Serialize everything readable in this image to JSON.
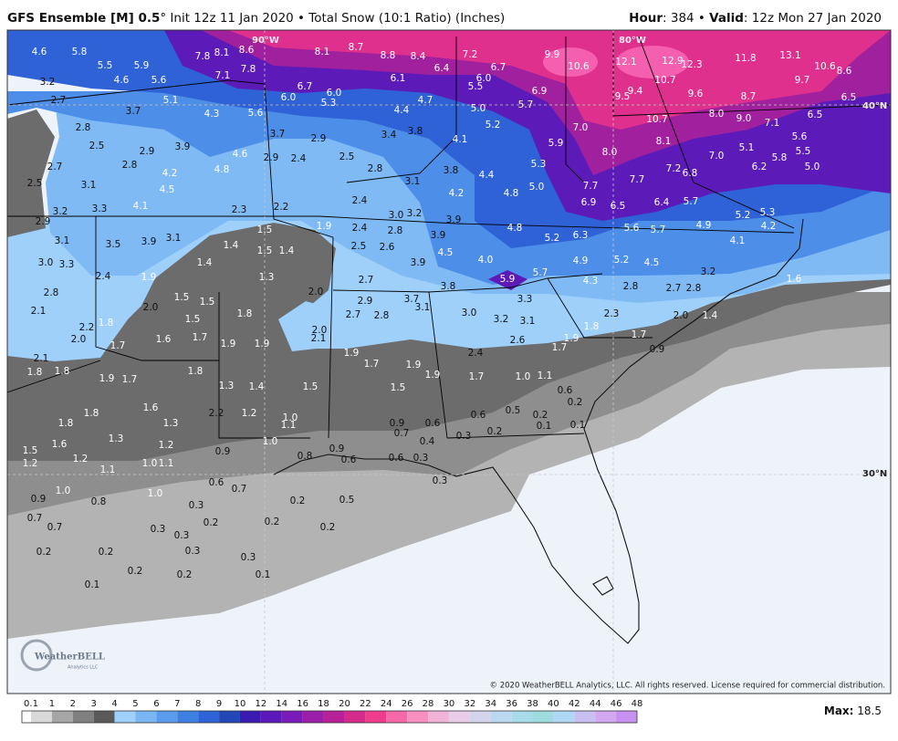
{
  "header": {
    "title_bold": "GFS Ensemble [M] 0.5",
    "title_rest": "° Init 12z 11 Jan 2020 • Total Snow (10:1 Ratio) (Inches)",
    "hour_key": "Hour",
    "hour_rest": ": 384 • ",
    "valid_key": "Valid",
    "valid_rest": ": 12z Mon 27 Jan 2020"
  },
  "map": {
    "gridline_labels": [
      "90°W",
      "80°W",
      "40°N",
      "30°N"
    ],
    "labels": [
      "4.6",
      "5.8",
      "7.8",
      "8.1",
      "8.6",
      "8.1",
      "8.7",
      "8.8",
      "8.4",
      "7.2",
      "9.9",
      "12.1",
      "12.9",
      "12.3",
      "11.8",
      "13.1",
      "10.6",
      "8.6",
      "5.5",
      "5.9",
      "7.8",
      "6.4",
      "6.7",
      "10.6",
      "4.6",
      "5.6",
      "7.1",
      "6.1",
      "6.0",
      "10.7",
      "9.7",
      "3.2",
      "6.7",
      "5.5",
      "9.4",
      "6.9",
      "6.0",
      "9.6",
      "8.7",
      "6.5",
      "9.5",
      "2.7",
      "5.1",
      "6.0",
      "5.3",
      "4.7",
      "5.7",
      "5.0",
      "3.7",
      "4.3",
      "5.6",
      "4.4",
      "8.0",
      "6.5",
      "10.7",
      "9.0",
      "7.1",
      "5.2",
      "2.8",
      "7.0",
      "3.8",
      "3.7",
      "3.4",
      "5.6",
      "2.9",
      "4.1",
      "8.1",
      "5.9",
      "2.5",
      "3.9",
      "5.1",
      "2.9",
      "5.5",
      "8.0",
      "4.6",
      "7.0",
      "2.5",
      "2.9",
      "5.8",
      "2.4",
      "5.3",
      "2.8",
      "2.7",
      "6.2",
      "5.0",
      "2.8",
      "7.2",
      "4.8",
      "3.8",
      "4.2",
      "6.8",
      "4.4",
      "7.7",
      "3.1",
      "2.5",
      "3.1",
      "7.7",
      "5.0",
      "4.5",
      "4.2",
      "4.8",
      "2.4",
      "5.7",
      "6.9",
      "6.4",
      "4.1",
      "6.5",
      "2.2",
      "3.3",
      "2.3",
      "3.2",
      "5.3",
      "3.2",
      "5.2",
      "3.0",
      "3.9",
      "2.9",
      "4.9",
      "1.9",
      "4.2",
      "2.4",
      "5.6",
      "4.8",
      "1.5",
      "5.7",
      "2.8",
      "6.3",
      "3.9",
      "3.1",
      "5.2",
      "3.1",
      "4.1",
      "3.9",
      "3.5",
      "1.4",
      "2.5",
      "2.6",
      "1.5",
      "1.4",
      "4.5",
      "4.0",
      "5.2",
      "4.9",
      "1.4",
      "3.0",
      "3.9",
      "4.5",
      "3.3",
      "3.2",
      "5.7",
      "2.4",
      "1.9",
      "1.3",
      "5.9",
      "1.6",
      "2.7",
      "4.3",
      "2.8",
      "3.8",
      "2.7",
      "2.8",
      "2.0",
      "2.8",
      "1.5",
      "3.7",
      "3.3",
      "2.9",
      "1.5",
      "2.0",
      "3.1",
      "2.1",
      "3.0",
      "2.3",
      "1.8",
      "2.7",
      "2.8",
      "2.0",
      "1.4",
      "3.2",
      "1.5",
      "3.1",
      "1.8",
      "1.8",
      "2.2",
      "2.0",
      "1.7",
      "1.7",
      "2.1",
      "1.9",
      "1.6",
      "2.0",
      "2.6",
      "1.9",
      "1.9",
      "1.7",
      "1.7",
      "0.9",
      "1.9",
      "2.4",
      "2.1",
      "1.7",
      "1.9",
      "1.8",
      "1.8",
      "1.8",
      "1.9",
      "1.1",
      "1.7",
      "1.0",
      "1.9",
      "1.7",
      "1.3",
      "1.4",
      "1.5",
      "1.5",
      "0.6",
      "0.2",
      "1.6",
      "0.5",
      "1.8",
      "2.2",
      "1.2",
      "0.6",
      "0.2",
      "1.0",
      "0.9",
      "0.6",
      "1.8",
      "1.3",
      "1.1",
      "0.1",
      "0.1",
      "0.2",
      "0.7",
      "0.3",
      "1.3",
      "0.4",
      "1.0",
      "1.6",
      "1.2",
      "0.9",
      "1.5",
      "0.9",
      "0.8",
      "0.3",
      "0.6",
      "1.2",
      "0.6",
      "1.2",
      "1.0",
      "1.1",
      "1.1",
      "0.3",
      "0.6",
      "0.7",
      "1.0",
      "1.0",
      "0.9",
      "0.5",
      "0.2",
      "0.8",
      "0.3",
      "0.7",
      "0.2",
      "0.2",
      "0.7",
      "0.2",
      "0.3",
      "0.3",
      "0.3",
      "0.2",
      "0.2",
      "0.3",
      "0.2",
      "0.2",
      "0.1",
      "0.1"
    ]
  },
  "logo": {
    "name": "WeatherBELL",
    "sub": "Analytics LLC"
  },
  "copyright": "© 2020 WeatherBELL Analytics, LLC. All rights reserved. License required for commercial distribution.",
  "colorbar": {
    "ticks": [
      0.1,
      1,
      2,
      3,
      4,
      5,
      6,
      7,
      8,
      9,
      10,
      12,
      14,
      16,
      18,
      20,
      22,
      24,
      26,
      28,
      30,
      32,
      34,
      36,
      38,
      40,
      42,
      44,
      46,
      48
    ],
    "colors": [
      "#ffffff",
      "#d9d9d9",
      "#a6a6a6",
      "#808080",
      "#5a5a5a",
      "#9ed0fa",
      "#79b6f3",
      "#5a9bec",
      "#3f7fe2",
      "#2d63d6",
      "#2447b8",
      "#3a1ab0",
      "#5a19b8",
      "#7a1ab8",
      "#9a1ea8",
      "#b8209a",
      "#d42a8c",
      "#ee3d8c",
      "#f569a8",
      "#f78fc0",
      "#f0b4d8",
      "#e8cce8",
      "#d4d4ec",
      "#bcd8f0",
      "#a8dcea",
      "#9edce0",
      "#b0d8f4",
      "#c8c0f0",
      "#d4a8f0",
      "#c890f0"
    ]
  },
  "max": {
    "key": "Max:",
    "value": 18.5
  }
}
